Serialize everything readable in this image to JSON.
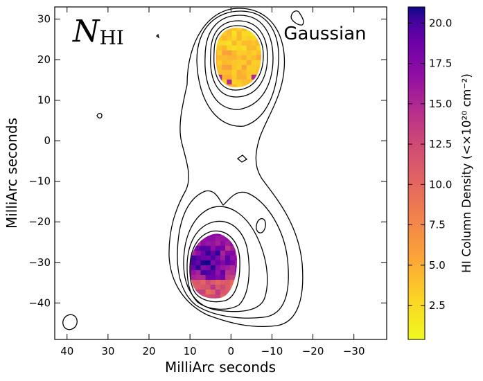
{
  "chart_data": {
    "type": "heatmap",
    "title": "",
    "xlabel": "MilliArc seconds",
    "ylabel": "MilliArc seconds",
    "xlim": [
      43,
      -38
    ],
    "ylim": [
      -49,
      33
    ],
    "x_ticks": [
      40,
      30,
      20,
      10,
      0,
      -10,
      -20,
      -30
    ],
    "x_tick_labels": [
      "40",
      "30",
      "20",
      "10",
      "0",
      "−10",
      "−20",
      "−30"
    ],
    "y_ticks": [
      30,
      20,
      10,
      0,
      -10,
      -20,
      -30,
      -40
    ],
    "y_tick_labels": [
      "30",
      "20",
      "10",
      "0",
      "−10",
      "−20",
      "−30",
      "−40"
    ],
    "annotations": {
      "quantity_symbol": "N",
      "quantity_subscript": "HI",
      "model": "Gaussian"
    },
    "colorbar": {
      "label": "HI Column Density (<×10²⁰ cm⁻²)",
      "range": [
        0.4,
        21.0
      ],
      "ticks": [
        2.5,
        5.0,
        7.5,
        10.0,
        12.5,
        15.0,
        17.5,
        20.0
      ],
      "tick_labels": [
        "2.5",
        "5.0",
        "7.5",
        "10.0",
        "12.5",
        "15.0",
        "17.5",
        "20.0"
      ],
      "colormap": "plasma_r",
      "colors": [
        "#f0f921",
        "#fca636",
        "#e16462",
        "#b12a90",
        "#6a00a8",
        "#0d0887"
      ]
    },
    "regions": [
      {
        "component": "northern",
        "x_range": [
          7,
          -4
        ],
        "y_range": [
          14,
          29
        ],
        "typical_value": 4.5
      },
      {
        "component": "southern",
        "x_range": [
          11,
          -2
        ],
        "y_range": [
          -39,
          -22
        ],
        "typical_value": 15.0
      }
    ],
    "contour_levels_count": 5,
    "beam": {
      "x": 40,
      "y": -44.5,
      "major": 3.4,
      "minor": 2.8
    }
  }
}
